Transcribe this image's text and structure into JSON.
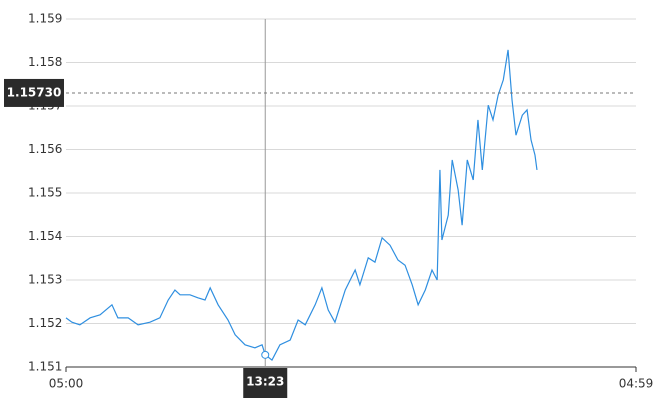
{
  "chart_data": {
    "type": "line",
    "x": [
      "05:00",
      "05:15",
      "05:35",
      "06:01",
      "06:26",
      "06:56",
      "07:11",
      "07:37",
      "08:02",
      "08:32",
      "08:57",
      "09:18",
      "09:35",
      "09:48",
      "10:13",
      "10:33",
      "10:51",
      "11:04",
      "11:24",
      "11:49",
      "12:07",
      "12:32",
      "12:57",
      "13:15",
      "13:23",
      "13:40",
      "14:00",
      "14:26",
      "14:46",
      "15:04",
      "15:29",
      "15:46",
      "16:02",
      "16:19",
      "16:45",
      "17:10",
      "17:22",
      "17:43",
      "18:00",
      "18:18",
      "18:38",
      "18:58",
      "19:16",
      "19:34",
      "19:49",
      "20:07",
      "20:24",
      "20:37",
      "20:44",
      "20:49",
      "21:05",
      "21:15",
      "21:30",
      "21:40",
      "21:53",
      "22:08",
      "22:20",
      "22:31",
      "22:46",
      "22:58",
      "23:11",
      "23:24",
      "23:36",
      "23:46",
      "23:56",
      "00:12",
      "00:24",
      "00:34",
      "00:44",
      "00:49"
    ],
    "values": [
      1.15213,
      1.15203,
      1.15197,
      1.15213,
      1.1522,
      1.15243,
      1.15213,
      1.15213,
      1.15197,
      1.15203,
      1.15213,
      1.15254,
      1.15277,
      1.15266,
      1.15266,
      1.15259,
      1.15254,
      1.15282,
      1.15243,
      1.15208,
      1.15174,
      1.15151,
      1.15144,
      1.15151,
      1.15128,
      1.15116,
      1.15151,
      1.15162,
      1.15208,
      1.15197,
      1.15243,
      1.15282,
      1.15231,
      1.15203,
      1.15277,
      1.15323,
      1.15289,
      1.15351,
      1.15341,
      1.15397,
      1.1538,
      1.15346,
      1.15334,
      1.15289,
      1.15243,
      1.15277,
      1.15323,
      1.153,
      1.15553,
      1.15392,
      1.15449,
      1.15576,
      1.15507,
      1.15426,
      1.15576,
      1.1553,
      1.15668,
      1.15553,
      1.15702,
      1.15668,
      1.15725,
      1.1576,
      1.15829,
      1.15714,
      1.15633,
      1.15679,
      1.15691,
      1.15622,
      1.15587,
      1.15553
    ],
    "color": "#2f8fe0",
    "xlim": [
      "05:00",
      "04:59"
    ],
    "xticks": [
      "05:00",
      "04:59"
    ],
    "ylim": [
      1.151,
      1.159
    ],
    "yticks": [
      1.151,
      1.152,
      1.153,
      1.154,
      1.155,
      1.156,
      1.157,
      1.158,
      1.159
    ],
    "grid": true,
    "crosshair": {
      "x": "13:23",
      "y": {
        "value": 1.1573,
        "label": "1.15730"
      }
    }
  }
}
